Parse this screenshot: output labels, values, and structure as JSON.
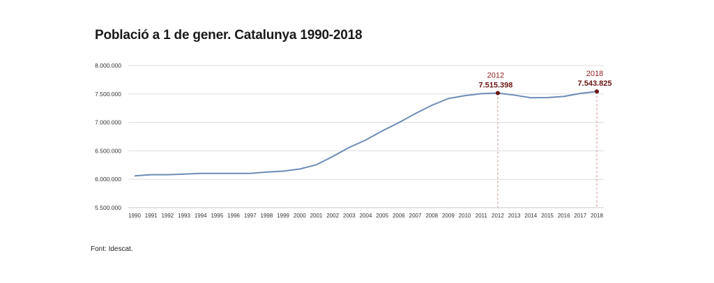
{
  "chart_data": {
    "type": "line",
    "title": "Població a 1 de gener. Catalunya 1990-2018",
    "source": "Font: Idescat.",
    "xlabel": "",
    "ylabel": "",
    "ylim": [
      5500000,
      8000000
    ],
    "y_ticks": [
      "5.500.000",
      "6.000.000",
      "6.500.000",
      "7.000.000",
      "7.500.000",
      "8.000.000"
    ],
    "y_tick_values": [
      5500000,
      6000000,
      6500000,
      7000000,
      7500000,
      8000000
    ],
    "grid": true,
    "line_color": "#6b8cb5",
    "annotation_color": "#8b1a1a",
    "x": [
      "1990",
      "1991",
      "1992",
      "1993",
      "1994",
      "1995",
      "1996",
      "1997",
      "1998",
      "1999",
      "2000",
      "2001",
      "2002",
      "2003",
      "2004",
      "2005",
      "2006",
      "2007",
      "2008",
      "2009",
      "2010",
      "2011",
      "2012",
      "2013",
      "2014",
      "2015",
      "2016",
      "2017",
      "2018"
    ],
    "series": [
      {
        "values": [
          6059000,
          6080000,
          6080000,
          6092000,
          6103000,
          6104000,
          6103000,
          6103000,
          6127000,
          6143000,
          6180000,
          6254000,
          6400000,
          6560000,
          6690000,
          6850000,
          6995000,
          7155000,
          7300000,
          7420000,
          7470000,
          7505000,
          7515398,
          7480000,
          7433000,
          7436000,
          7456000,
          7510000,
          7543825
        ]
      }
    ],
    "annotations": [
      {
        "x": "2012",
        "year_label": "2012",
        "value_label": "7.515.398",
        "value": 7515398
      },
      {
        "x": "2018",
        "year_label": "2018",
        "value_label": "7.543.825",
        "value": 7543825
      }
    ]
  }
}
